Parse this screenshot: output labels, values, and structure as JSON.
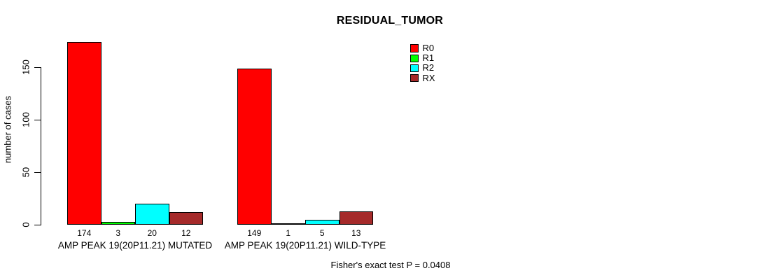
{
  "title": "RESIDUAL_TUMOR",
  "ylabel": "number of cases",
  "footer": "Fisher's exact test P = 0.0408",
  "colors": {
    "R0": "#ff0000",
    "R1": "#00ff00",
    "R2": "#00ffff",
    "RX": "#a52a2a",
    "axis": "#000000",
    "background": "#ffffff"
  },
  "chart_data": {
    "type": "bar",
    "title": "RESIDUAL_TUMOR",
    "xlabel": "",
    "ylabel": "number of cases",
    "yticks": [
      0,
      50,
      100,
      150
    ],
    "ylim": [
      0,
      180
    ],
    "grid": false,
    "legend_position": "top-right",
    "categories": [
      "AMP PEAK 19(20P11.21) MUTATED",
      "AMP PEAK 19(20P11.21) WILD-TYPE"
    ],
    "series": [
      {
        "name": "R0",
        "color": "#ff0000",
        "values": [
          174,
          149
        ]
      },
      {
        "name": "R1",
        "color": "#00ff00",
        "values": [
          3,
          1
        ]
      },
      {
        "name": "R2",
        "color": "#00ffff",
        "values": [
          20,
          5
        ]
      },
      {
        "name": "RX",
        "color": "#a52a2a",
        "values": [
          12,
          13
        ]
      }
    ],
    "bar_value_labels": [
      [
        "174",
        "3",
        "20",
        "12"
      ],
      [
        "149",
        "1",
        "5",
        "13"
      ]
    ],
    "annotation": "Fisher's exact test P = 0.0408"
  }
}
